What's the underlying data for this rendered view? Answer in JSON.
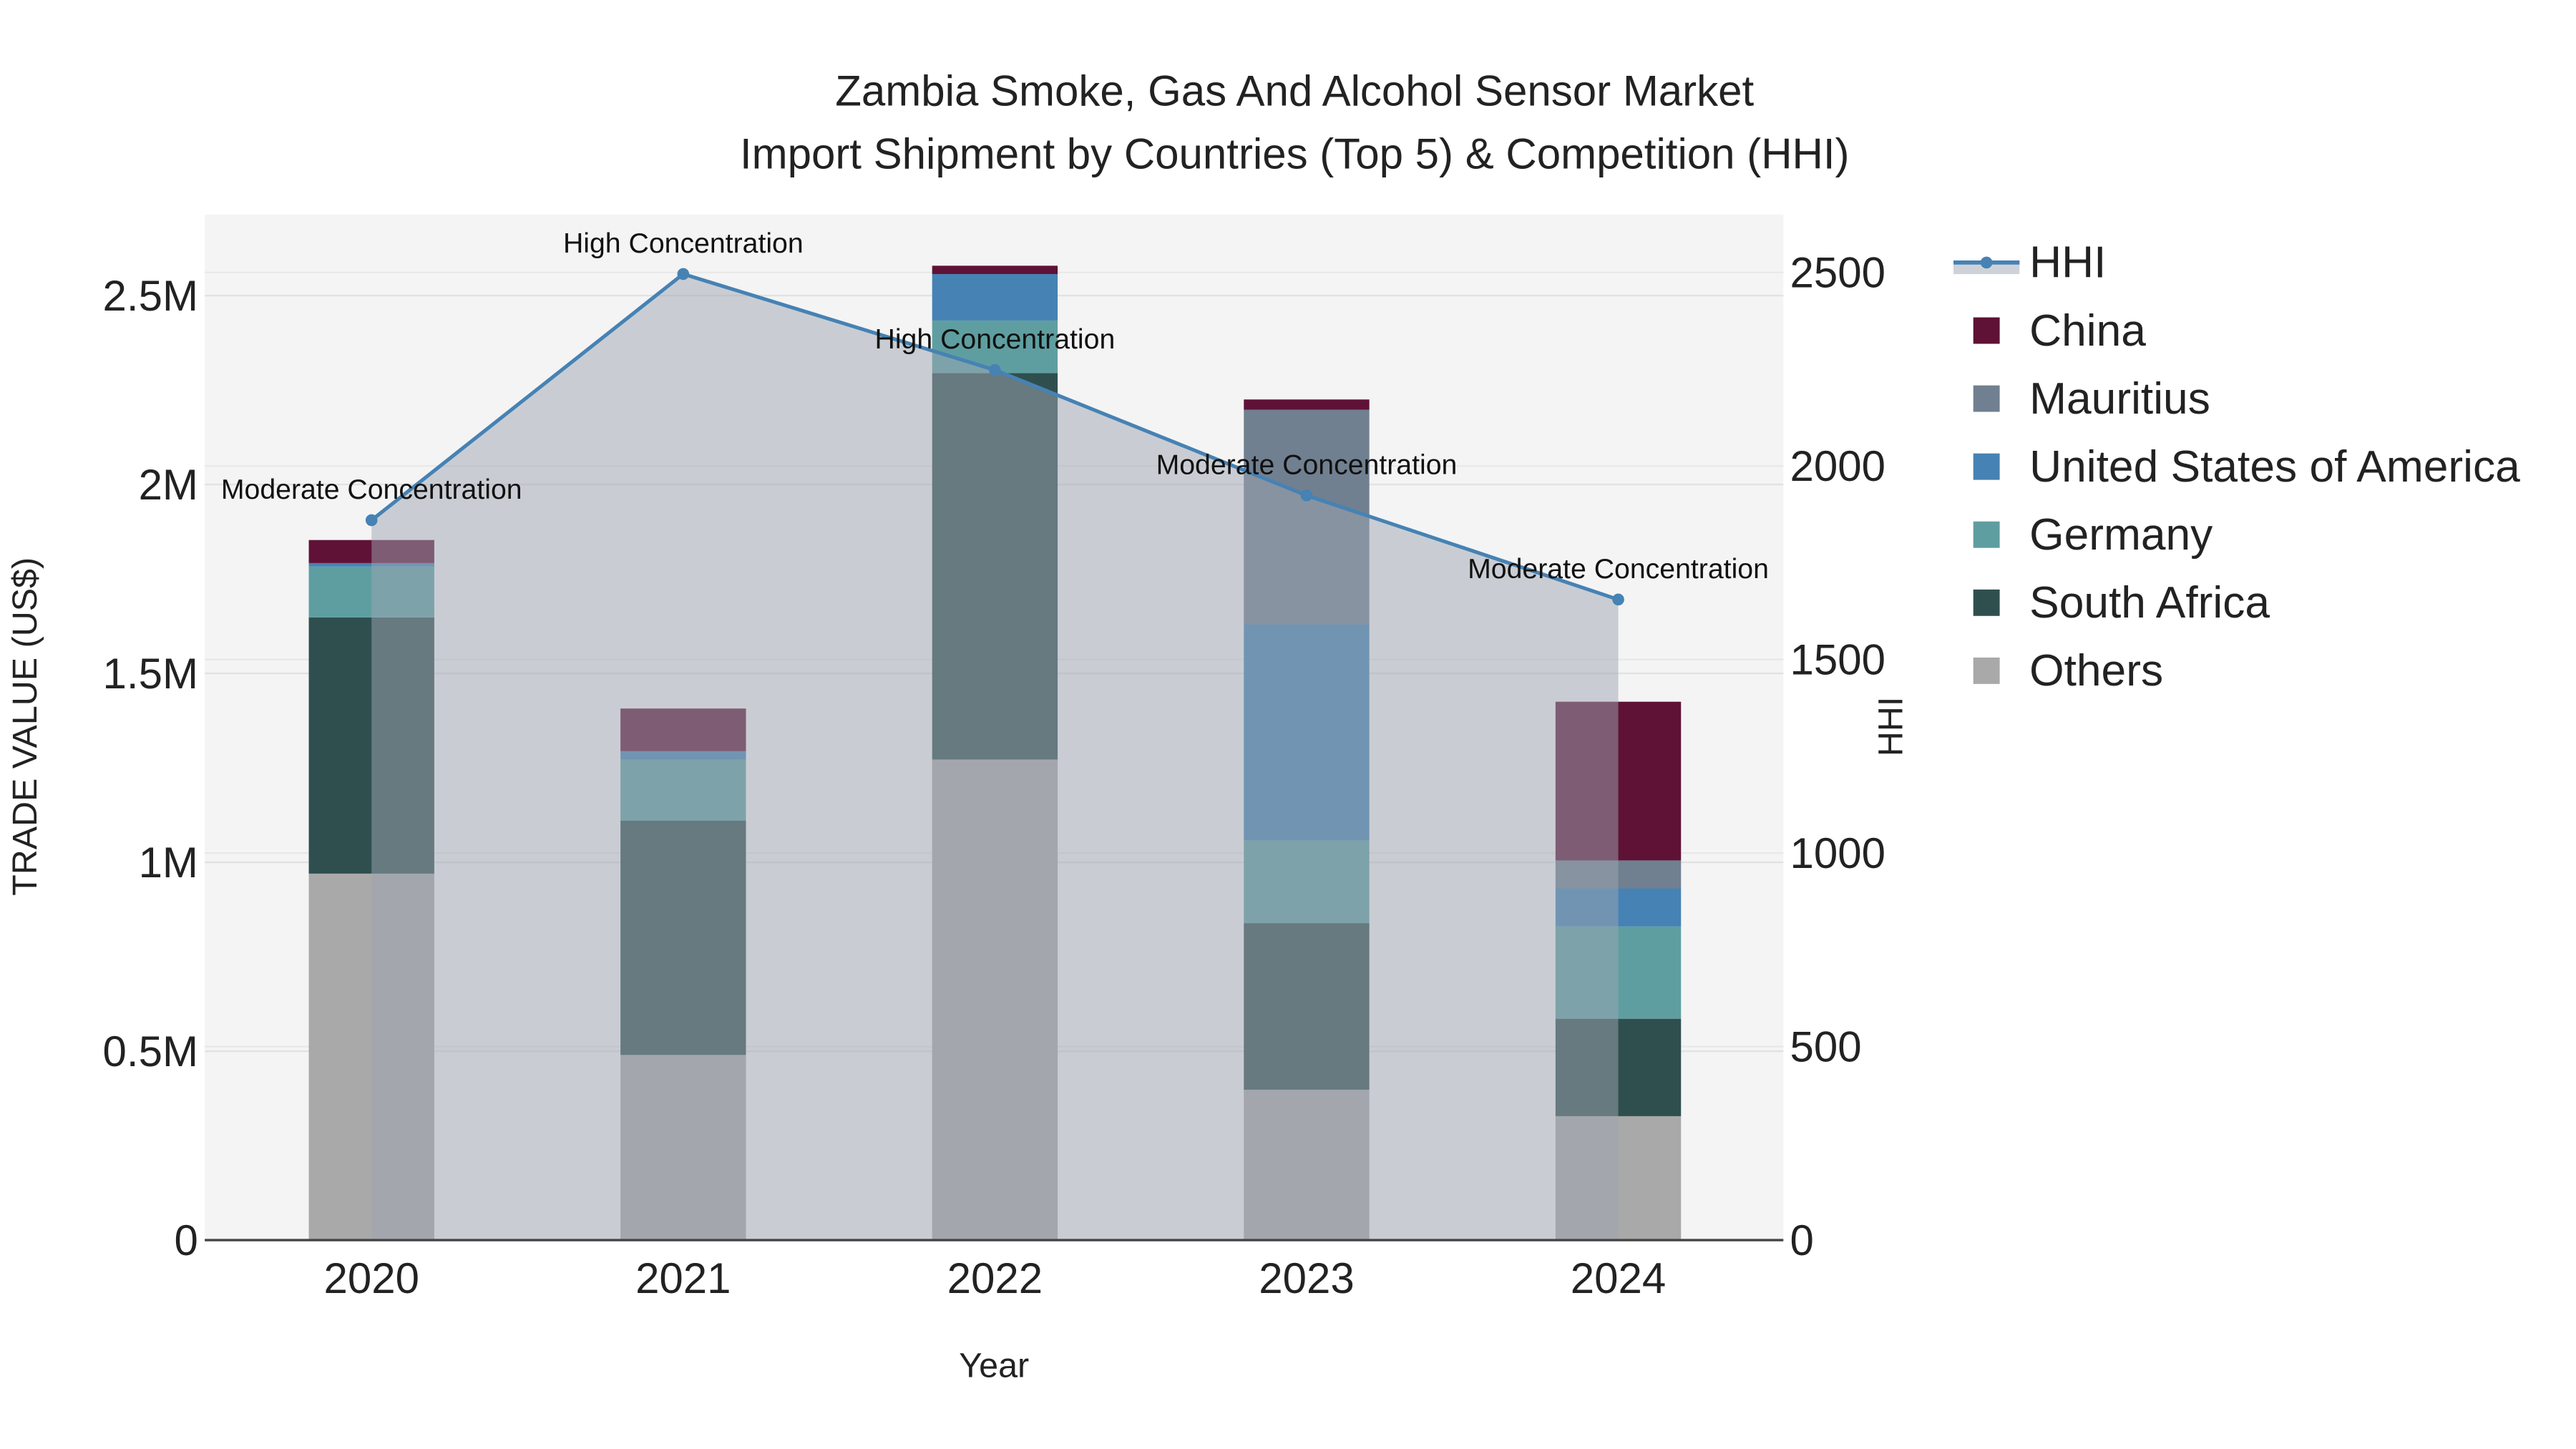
{
  "chart_data": {
    "type": "bar",
    "stacked": true,
    "title_line1": "Zambia Smoke, Gas And Alcohol Sensor Market",
    "title_line2": "Import Shipment by Countries (Top 5) & Competition (HHI)",
    "xlabel": "Year",
    "ylabel": "TRADE VALUE (US$)",
    "y2label": "HHI",
    "categories": [
      "2020",
      "2021",
      "2022",
      "2023",
      "2024"
    ],
    "ylim": [
      0,
      2700000
    ],
    "y2lim": [
      0,
      2640
    ],
    "yticks": [
      0,
      500000,
      1000000,
      1500000,
      2000000,
      2500000
    ],
    "ytick_labels": [
      "0",
      "0.5M",
      "1M",
      "1.5M",
      "2M",
      "2.5M"
    ],
    "y2ticks": [
      0,
      500,
      1000,
      1500,
      2000,
      2500
    ],
    "y2tick_labels": [
      "0",
      "500",
      "1000",
      "1500",
      "2000",
      "2500"
    ],
    "series": [
      {
        "name": "Others",
        "color": "#a9a9a9",
        "values": [
          970000,
          490000,
          1272000,
          398000,
          328000
        ]
      },
      {
        "name": "South Africa",
        "color": "#2f4f4f",
        "values": [
          678000,
          620000,
          1023000,
          441000,
          258000
        ]
      },
      {
        "name": "Germany",
        "color": "#5f9ea0",
        "values": [
          135000,
          162000,
          139000,
          219000,
          244000
        ]
      },
      {
        "name": "United States of America",
        "color": "#4682b4",
        "values": [
          9000,
          22000,
          123000,
          572000,
          101000
        ]
      },
      {
        "name": "Mauritius",
        "color": "#708090",
        "values": [
          0,
          0,
          0,
          568000,
          74000
        ]
      },
      {
        "name": "China",
        "color": "#5f1236",
        "values": [
          61000,
          113000,
          22000,
          27000,
          420000
        ]
      }
    ],
    "hhi": {
      "name": "HHI",
      "color": "#4682b4",
      "values": [
        1860,
        2496,
        2248,
        1924,
        1655
      ],
      "annotations": [
        "Moderate Concentration",
        "High Concentration",
        "High Concentration",
        "Moderate Concentration",
        "Moderate Concentration"
      ]
    },
    "legend_order": [
      "HHI",
      "China",
      "Mauritius",
      "United States of America",
      "Germany",
      "South Africa",
      "Others"
    ],
    "legend_position": "right",
    "grid": true
  }
}
